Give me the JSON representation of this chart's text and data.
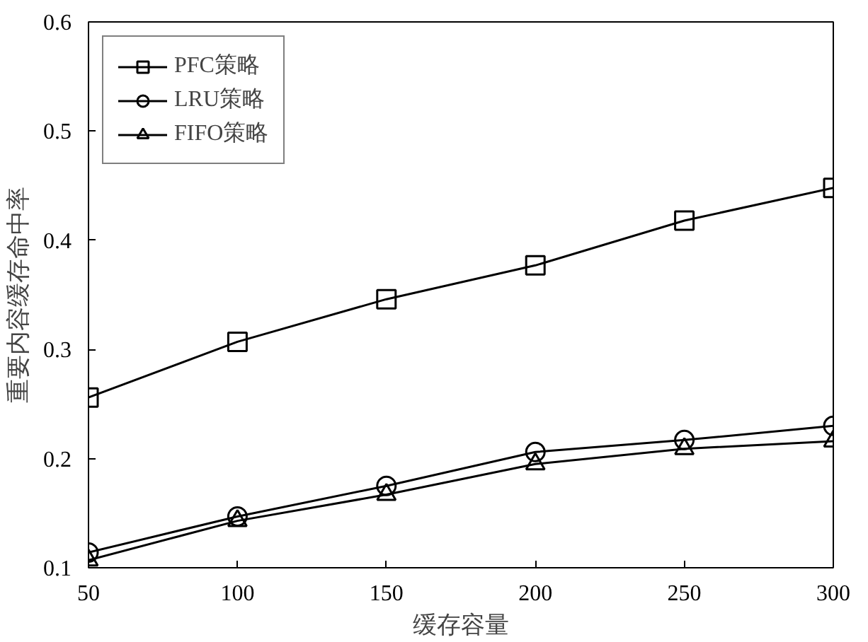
{
  "chart_data": {
    "type": "line",
    "xlabel": "缓存容量",
    "ylabel": "重要内容缓存命中率",
    "x": [
      50,
      100,
      150,
      200,
      250,
      300
    ],
    "series": [
      {
        "name": "PFC策略",
        "color": "#000000",
        "marker": "square",
        "values": [
          0.256,
          0.307,
          0.346,
          0.377,
          0.418,
          0.448
        ]
      },
      {
        "name": "LRU策略",
        "color": "#000000",
        "marker": "circle",
        "values": [
          0.114,
          0.147,
          0.175,
          0.206,
          0.217,
          0.23
        ]
      },
      {
        "name": "FIFO策略",
        "color": "#000000",
        "marker": "triangle",
        "values": [
          0.107,
          0.143,
          0.167,
          0.195,
          0.209,
          0.216
        ]
      }
    ],
    "xlim": [
      50,
      300
    ],
    "xticks": [
      50,
      100,
      150,
      200,
      250,
      300
    ],
    "ylim": [
      0.1,
      0.6
    ],
    "yticks": [
      0.1,
      0.2,
      0.3,
      0.4,
      0.5,
      0.6
    ],
    "legend": "top left",
    "line_style": "solid",
    "grid": false
  }
}
